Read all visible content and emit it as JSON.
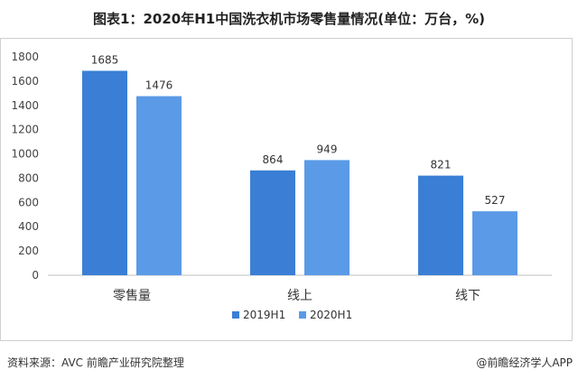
{
  "title": "图表1：2020年H1中国洗衣机市场零售量情况(单位：万台，%)",
  "footer": {
    "source": "资料来源：AVC 前瞻产业研究院整理",
    "brand": "@前瞻经济学人APP"
  },
  "colors": {
    "series_2019": "#3a7fd5",
    "series_2020": "#5a9ae6"
  },
  "chart_data": {
    "type": "bar",
    "title": "图表1：2020年H1中国洗衣机市场零售量情况(单位：万台，%)",
    "categories": [
      "零售量",
      "线上",
      "线下"
    ],
    "series": [
      {
        "name": "2019H1",
        "values": [
          1685,
          864,
          821
        ]
      },
      {
        "name": "2020H1",
        "values": [
          1476,
          949,
          527
        ]
      }
    ],
    "yticks": [
      0,
      200,
      400,
      600,
      800,
      1000,
      1200,
      1400,
      1600,
      1800
    ],
    "ylim": [
      0,
      1800
    ],
    "grid": false,
    "legend": "bottom-center"
  }
}
